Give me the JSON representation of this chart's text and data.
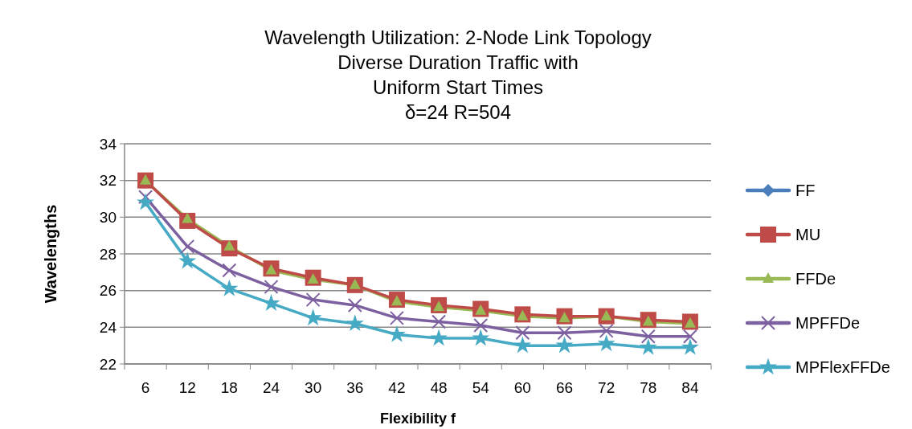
{
  "chart_data": {
    "type": "line",
    "title": "Wavelength Utilization: 2-Node Link Topology\nDiverse Duration Traffic with\nUniform Start Times\nδ=24 R=504",
    "xlabel": "Flexibility f",
    "ylabel": "Wavelengths",
    "categories": [
      "6",
      "12",
      "18",
      "24",
      "30",
      "36",
      "42",
      "48",
      "54",
      "60",
      "66",
      "72",
      "78",
      "84"
    ],
    "ylim": [
      22,
      34
    ],
    "yticks": [
      22,
      24,
      26,
      28,
      30,
      32,
      34
    ],
    "grid": "y",
    "legend": "right",
    "series": [
      {
        "name": "FF",
        "color": "#4a7ebb",
        "marker": "diamond",
        "values": [
          null,
          null,
          null,
          null,
          null,
          null,
          null,
          null,
          null,
          null,
          null,
          null,
          null,
          null
        ]
      },
      {
        "name": "MU",
        "color": "#be4b48",
        "marker": "square",
        "values": [
          32,
          29.8,
          28.3,
          27.2,
          26.7,
          26.3,
          25.5,
          25.2,
          25.0,
          24.7,
          24.6,
          24.6,
          24.4,
          24.3
        ]
      },
      {
        "name": "FFDe",
        "color": "#98b954",
        "marker": "triangle",
        "values": [
          32,
          29.9,
          28.4,
          27.1,
          26.6,
          26.3,
          25.4,
          25.1,
          24.9,
          24.6,
          24.5,
          24.6,
          24.3,
          24.2
        ]
      },
      {
        "name": "MPFFDe",
        "color": "#7d60a0",
        "marker": "cross",
        "values": [
          31.1,
          28.4,
          27.1,
          26.2,
          25.5,
          25.2,
          24.5,
          24.3,
          24.1,
          23.7,
          23.7,
          23.8,
          23.5,
          23.5
        ]
      },
      {
        "name": "MPFlexFFDe",
        "color": "#46aac5",
        "marker": "star",
        "values": [
          30.8,
          27.6,
          26.1,
          25.3,
          24.5,
          24.2,
          23.6,
          23.4,
          23.4,
          23.0,
          23.0,
          23.1,
          22.9,
          22.9
        ]
      }
    ]
  }
}
